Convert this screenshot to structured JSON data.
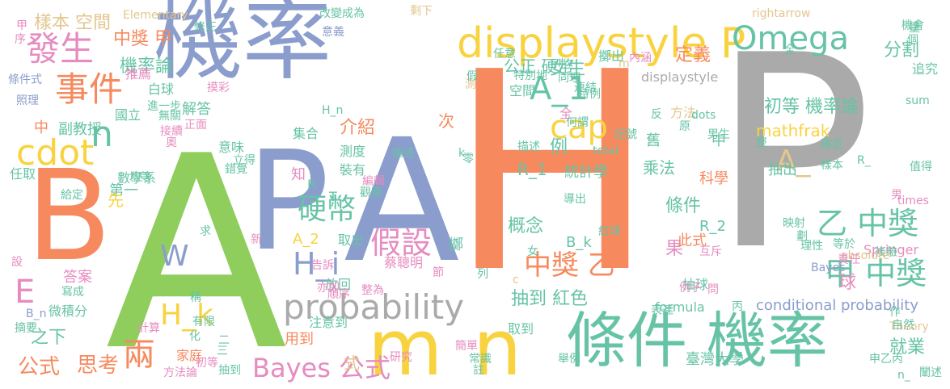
{
  "palette": {
    "green": "#8fce5d",
    "orange": "#f7895e",
    "blue": "#8b9dcc",
    "gray": "#aaaaaa",
    "yellow": "#f8d33f",
    "teal": "#66c3a6",
    "pink": "#e68cc0",
    "tan": "#e4c68f"
  },
  "words": [
    {
      "text": "A",
      "color": "green"
    },
    {
      "text": "H",
      "color": "orange"
    },
    {
      "text": "P",
      "color": "gray"
    },
    {
      "text": "機率",
      "color": "blue"
    },
    {
      "text": "A",
      "color": "blue"
    },
    {
      "text": "B",
      "color": "orange"
    },
    {
      "text": "P",
      "color": "blue"
    },
    {
      "text": "m",
      "color": "yellow"
    },
    {
      "text": "n",
      "color": "yellow"
    },
    {
      "text": "條件 機率",
      "color": "teal"
    },
    {
      "text": "displaystyle P",
      "color": "yellow"
    },
    {
      "text": "Omega",
      "color": "teal"
    },
    {
      "text": "probability",
      "color": "gray"
    },
    {
      "text": "cdot",
      "color": "yellow"
    },
    {
      "text": "發生",
      "color": "pink"
    },
    {
      "text": "事件",
      "color": "orange"
    },
    {
      "text": "A_1",
      "color": "teal"
    },
    {
      "text": "cap",
      "color": "yellow"
    },
    {
      "text": "乙 中獎",
      "color": "teal"
    },
    {
      "text": "甲 中獎",
      "color": "teal"
    },
    {
      "text": "假設",
      "color": "pink"
    },
    {
      "text": "硬幣",
      "color": "teal"
    },
    {
      "text": "H_i",
      "color": "blue"
    },
    {
      "text": "H_k",
      "color": "yellow"
    },
    {
      "text": "兩",
      "color": "orange"
    },
    {
      "text": "中獎 乙",
      "color": "orange"
    },
    {
      "text": "Bayes 公式",
      "color": "pink"
    },
    {
      "text": "A_",
      "color": "tan"
    },
    {
      "text": "E",
      "color": "pink"
    },
    {
      "text": "n",
      "color": "teal"
    },
    {
      "text": "W",
      "color": "blue"
    },
    {
      "text": "樣本 空間",
      "color": "tan"
    },
    {
      "text": "中獎 甲",
      "color": "orange"
    },
    {
      "text": "機率論",
      "color": "teal"
    },
    {
      "text": "公正 硬幣",
      "color": "teal"
    },
    {
      "text": "女生",
      "color": "teal"
    },
    {
      "text": "分割",
      "color": "teal"
    },
    {
      "text": "定義",
      "color": "orange"
    },
    {
      "text": "初等 機率論",
      "color": "teal"
    },
    {
      "text": "mathfrak",
      "color": "yellow"
    },
    {
      "text": "抽到 紅色",
      "color": "teal"
    },
    {
      "text": "conditional probability",
      "color": "blue"
    },
    {
      "text": "條件",
      "color": "teal"
    },
    {
      "text": "果",
      "color": "pink"
    },
    {
      "text": "球",
      "color": "pink"
    },
    {
      "text": "就業",
      "color": "teal"
    },
    {
      "text": "公式",
      "color": "orange"
    },
    {
      "text": "思考",
      "color": "orange"
    },
    {
      "text": "之下",
      "color": "teal"
    },
    {
      "text": "A_2",
      "color": "yellow"
    },
    {
      "text": "介紹",
      "color": "orange"
    },
    {
      "text": "例",
      "color": "teal"
    },
    {
      "text": "R_1",
      "color": "teal"
    },
    {
      "text": "統計學",
      "color": "teal"
    },
    {
      "text": "概念",
      "color": "teal"
    },
    {
      "text": "臺灣大學",
      "color": "teal"
    },
    {
      "text": "R_2",
      "color": "teal"
    },
    {
      "text": "此式",
      "color": "orange"
    },
    {
      "text": "Springer",
      "color": "pink"
    },
    {
      "text": "formula",
      "color": "teal"
    },
    {
      "text": "乘法",
      "color": "teal"
    },
    {
      "text": "科學",
      "color": "orange"
    },
    {
      "text": "抽出",
      "color": "teal"
    },
    {
      "text": "方法",
      "color": "tan"
    },
    {
      "text": "Elementary",
      "color": "tan"
    },
    {
      "text": "rightarrow",
      "color": "tan"
    },
    {
      "text": "機會",
      "color": "teal"
    },
    {
      "text": "追究",
      "color": "teal"
    },
    {
      "text": "sum",
      "color": "teal"
    },
    {
      "text": "數學系",
      "color": "teal"
    },
    {
      "text": "副教授",
      "color": "teal"
    },
    {
      "text": "中",
      "color": "orange"
    },
    {
      "text": "國立",
      "color": "teal"
    },
    {
      "text": "解答",
      "color": "teal"
    },
    {
      "text": "白球",
      "color": "teal"
    },
    {
      "text": "推薦",
      "color": "pink"
    },
    {
      "text": "修正",
      "color": "teal"
    },
    {
      "text": "式",
      "color": "tan"
    },
    {
      "text": "用到",
      "color": "orange"
    },
    {
      "text": "注意到",
      "color": "teal"
    },
    {
      "text": "家庭",
      "color": "orange"
    },
    {
      "text": "方法論",
      "color": "pink"
    },
    {
      "text": "放回",
      "color": "teal"
    },
    {
      "text": "取到",
      "color": "teal"
    },
    {
      "text": "裝有",
      "color": "teal"
    },
    {
      "text": "測度",
      "color": "teal"
    },
    {
      "text": "集合",
      "color": "teal"
    },
    {
      "text": "知",
      "color": "pink"
    },
    {
      "text": "次",
      "color": "orange"
    },
    {
      "text": "空間",
      "color": "teal"
    },
    {
      "text": "答案",
      "color": "pink"
    },
    {
      "text": "微積分",
      "color": "teal"
    },
    {
      "text": "任取",
      "color": "teal"
    },
    {
      "text": "第一",
      "color": "teal"
    },
    {
      "text": "先",
      "color": "yellow"
    },
    {
      "text": "取出",
      "color": "teal"
    },
    {
      "text": "抽球",
      "color": "teal"
    },
    {
      "text": "Theory",
      "color": "tan"
    },
    {
      "text": "B_k",
      "color": "teal"
    },
    {
      "text": "紅球",
      "color": "teal"
    },
    {
      "text": "描述",
      "color": "teal"
    },
    {
      "text": "total",
      "color": "teal"
    },
    {
      "text": "dots",
      "color": "teal"
    },
    {
      "text": "displaystyle",
      "color": "gray"
    },
    {
      "text": "擲出",
      "color": "teal"
    },
    {
      "text": "連結",
      "color": "teal"
    },
    {
      "text": "同理",
      "color": "teal"
    },
    {
      "text": "正面",
      "color": "pink"
    },
    {
      "text": "意味",
      "color": "teal"
    },
    {
      "text": "H_n",
      "color": "teal"
    },
    {
      "text": "蔡聰明",
      "color": "pink"
    },
    {
      "text": "擲",
      "color": "teal"
    },
    {
      "text": "R",
      "color": "teal"
    },
    {
      "text": "T",
      "color": "teal"
    },
    {
      "text": "舊",
      "color": "teal"
    },
    {
      "text": "中",
      "color": "teal"
    },
    {
      "text": "全",
      "color": "pink"
    },
    {
      "text": "後驗",
      "color": "teal"
    },
    {
      "text": "丙",
      "color": "teal"
    },
    {
      "text": "問",
      "color": "pink"
    },
    {
      "text": "二",
      "color": "teal"
    },
    {
      "text": "三",
      "color": "teal"
    },
    {
      "text": "任意",
      "color": "teal"
    },
    {
      "text": "條件式",
      "color": "blue"
    },
    {
      "text": "照理",
      "color": "blue"
    },
    {
      "text": "剩下",
      "color": "tan"
    },
    {
      "text": "改變成為",
      "color": "teal"
    },
    {
      "text": "意義",
      "color": "blue"
    },
    {
      "text": "確定",
      "color": "teal"
    },
    {
      "text": "B_n",
      "color": "blue"
    },
    {
      "text": "摘要",
      "color": "teal"
    },
    {
      "text": "序",
      "color": "pink"
    },
    {
      "text": "設",
      "color": "pink"
    },
    {
      "text": "給定",
      "color": "teal"
    },
    {
      "text": "寫成",
      "color": "teal"
    },
    {
      "text": "進一步",
      "color": "teal"
    },
    {
      "text": "無關",
      "color": "teal"
    },
    {
      "text": "摸彩",
      "color": "pink"
    },
    {
      "text": "男生",
      "color": "teal"
    },
    {
      "text": "舉例",
      "color": "teal"
    },
    {
      "text": "研究",
      "color": "pink"
    },
    {
      "text": "常識",
      "color": "teal"
    },
    {
      "text": "簡單",
      "color": "pink"
    },
    {
      "text": "註",
      "color": "teal"
    },
    {
      "text": "列",
      "color": "teal"
    },
    {
      "text": "抽到",
      "color": "teal"
    },
    {
      "text": "有限",
      "color": "teal"
    },
    {
      "text": "初等",
      "color": "pink"
    },
    {
      "text": "計算",
      "color": "pink"
    },
    {
      "text": "times",
      "color": "pink"
    },
    {
      "text": "男",
      "color": "pink"
    },
    {
      "text": "值得",
      "color": "teal"
    },
    {
      "text": "樣本",
      "color": "teal"
    },
    {
      "text": "R_",
      "color": "teal"
    },
    {
      "text": "映射",
      "color": "teal"
    },
    {
      "text": "劃",
      "color": "teal"
    },
    {
      "text": "理性",
      "color": "teal"
    },
    {
      "text": "absolute",
      "color": "tan"
    },
    {
      "text": "等於",
      "color": "teal"
    },
    {
      "text": "責任",
      "color": "pink"
    },
    {
      "text": "互斥",
      "color": "pink"
    },
    {
      "text": "例子",
      "color": "pink"
    },
    {
      "text": "自然",
      "color": "teal"
    },
    {
      "text": "Bayes",
      "color": "blue"
    },
    {
      "text": "表達",
      "color": "teal"
    },
    {
      "text": "申乙丙",
      "color": "teal"
    },
    {
      "text": "闡述",
      "color": "teal"
    },
    {
      "text": "n_",
      "color": "teal"
    },
    {
      "text": "k",
      "color": "teal"
    },
    {
      "text": "c",
      "color": "tan"
    },
    {
      "text": "m",
      "color": "tan"
    },
    {
      "text": "特例",
      "color": "teal"
    },
    {
      "text": "特別地",
      "color": "teal"
    },
    {
      "text": "何謂",
      "color": "teal"
    },
    {
      "text": "記號",
      "color": "teal"
    },
    {
      "text": "導出",
      "color": "teal"
    },
    {
      "text": "女",
      "color": "teal"
    },
    {
      "text": "作",
      "color": "teal"
    },
    {
      "text": "稱",
      "color": "teal"
    },
    {
      "text": "化",
      "color": "teal"
    },
    {
      "text": "亦即",
      "color": "pink"
    },
    {
      "text": "順序",
      "color": "pink"
    },
    {
      "text": "告訴",
      "color": "pink"
    },
    {
      "text": "整為",
      "color": "pink"
    },
    {
      "text": "節",
      "color": "pink"
    },
    {
      "text": "新",
      "color": "pink"
    },
    {
      "text": "求",
      "color": "teal"
    },
    {
      "text": "觀察",
      "color": "teal"
    },
    {
      "text": "編輯",
      "color": "pink"
    },
    {
      "text": "論述",
      "color": "teal"
    },
    {
      "text": "錯覺",
      "color": "teal"
    },
    {
      "text": "立得",
      "color": "teal"
    },
    {
      "text": "均等",
      "color": "teal"
    },
    {
      "text": "接續",
      "color": "pink"
    },
    {
      "text": "奧",
      "color": "pink"
    },
    {
      "text": "零",
      "color": "teal"
    },
    {
      "text": "內涵",
      "color": "pink"
    },
    {
      "text": "反",
      "color": "teal"
    },
    {
      "text": "原",
      "color": "teal"
    },
    {
      "text": "測",
      "color": "tan"
    },
    {
      "text": "假",
      "color": "teal"
    },
    {
      "text": "量",
      "color": "teal"
    },
    {
      "text": "整",
      "color": "teal"
    },
    {
      "text": "個",
      "color": "teal"
    },
    {
      "text": "全",
      "color": "teal"
    },
    {
      "text": "甲",
      "color": "pink"
    }
  ]
}
